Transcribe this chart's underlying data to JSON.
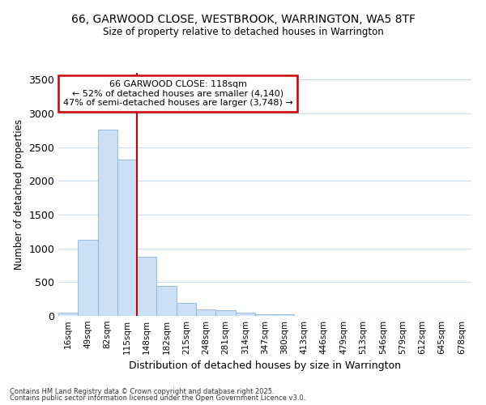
{
  "title_line1": "66, GARWOOD CLOSE, WESTBROOK, WARRINGTON, WA5 8TF",
  "title_line2": "Size of property relative to detached houses in Warrington",
  "xlabel": "Distribution of detached houses by size in Warrington",
  "ylabel": "Number of detached properties",
  "categories": [
    "16sqm",
    "49sqm",
    "82sqm",
    "115sqm",
    "148sqm",
    "182sqm",
    "215sqm",
    "248sqm",
    "281sqm",
    "314sqm",
    "347sqm",
    "380sqm",
    "413sqm",
    "446sqm",
    "479sqm",
    "513sqm",
    "546sqm",
    "579sqm",
    "612sqm",
    "645sqm",
    "678sqm"
  ],
  "values": [
    45,
    1130,
    2760,
    2320,
    880,
    440,
    190,
    100,
    80,
    50,
    30,
    20,
    5,
    2,
    1,
    1,
    1,
    1,
    0,
    0,
    0
  ],
  "bar_color": "#cce0f5",
  "bar_edge_color": "#89b4d9",
  "redline_x": 3.5,
  "annotation_text": "66 GARWOOD CLOSE: 118sqm\n← 52% of detached houses are smaller (4,140)\n47% of semi-detached houses are larger (3,748) →",
  "annotation_box_color": "#ffffff",
  "annotation_box_edge": "#cc0000",
  "redline_color": "#cc0000",
  "footnote1": "Contains HM Land Registry data © Crown copyright and database right 2025.",
  "footnote2": "Contains public sector information licensed under the Open Government Licence v3.0.",
  "ylim": [
    0,
    3600
  ],
  "yticks": [
    0,
    500,
    1000,
    1500,
    2000,
    2500,
    3000,
    3500
  ],
  "background_color": "#ffffff",
  "grid_color": "#c8ddf0"
}
